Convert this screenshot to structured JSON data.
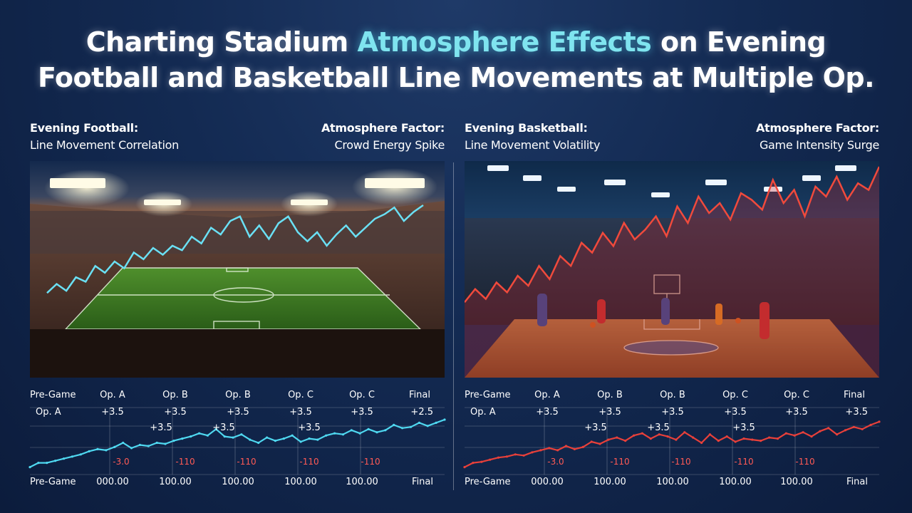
{
  "title": {
    "line1_pre": "Charting Stadium ",
    "line1_highlight": "Atmosphere Effects",
    "line1_post": " on Evening",
    "line2": "Football and Basketball Line Movements at Multiple Op."
  },
  "panels": [
    {
      "id": "football",
      "header_left_title": "Evening Football:",
      "header_left_sub": "Line Movement Correlation",
      "header_right_title": "Atmosphere Factor:",
      "header_right_sub": "Crowd Energy Spike"
    },
    {
      "id": "basketball",
      "header_left_title": "Evening Basketball:",
      "header_left_sub": "Line Movement Volatility",
      "header_right_title": "Atmosphere Factor:",
      "header_right_sub": "Game Intensity Surge"
    }
  ],
  "colors": {
    "football_line": "#4fd8f0",
    "basketball_line": "#e8403a",
    "title_highlight": "#7fe4ef",
    "negative_label": "#ff5a55",
    "grid": "#ffffff"
  },
  "icons": [
    "stadium-lights-icon",
    "soccer-field-icon",
    "basketball-court-icon"
  ],
  "chart_data": [
    {
      "type": "line",
      "name": "football",
      "top_labels": [
        "Pre-Game",
        "Op. A",
        "Op. B",
        "Op. B",
        "Op. C",
        "Op. C",
        "Final"
      ],
      "row_label": "Op. A",
      "row_values": [
        "+3.5",
        "+3.5",
        "+3.5",
        "+3.5",
        "+3.5",
        "+2.5"
      ],
      "annotations": [
        "+3.5",
        "+3.5",
        "+3.5"
      ],
      "red_labels": [
        "-3.0",
        "-110",
        "-110",
        "-110",
        "-110"
      ],
      "bottom_labels": [
        "Pre-Game",
        "000.00",
        "100.00",
        "100.00",
        "100.00",
        "100.00",
        "Final"
      ],
      "ylim": [
        0,
        100
      ],
      "values": [
        6,
        14,
        14,
        18,
        22,
        26,
        30,
        36,
        40,
        38,
        44,
        52,
        42,
        48,
        46,
        52,
        50,
        56,
        60,
        64,
        70,
        66,
        78,
        64,
        62,
        68,
        58,
        52,
        62,
        56,
        60,
        66,
        54,
        60,
        58,
        66,
        70,
        68,
        76,
        70,
        78,
        72,
        76,
        86,
        80,
        82,
        90,
        84,
        90,
        96
      ]
    },
    {
      "type": "line",
      "name": "basketball",
      "top_labels": [
        "Pre-Game",
        "Op. A",
        "Op. B",
        "Op. B",
        "Op. C",
        "Op. C",
        "Final"
      ],
      "row_label": "Op. A",
      "row_values": [
        "+3.5",
        "+3.5",
        "+3.5",
        "+3.5",
        "+3.5",
        "+3.5"
      ],
      "annotations": [
        "+3.5",
        "+3.5",
        "+3.5"
      ],
      "red_labels": [
        "-3.0",
        "-110",
        "-110",
        "-110",
        "-110"
      ],
      "bottom_labels": [
        "Pre-Game",
        "000.00",
        "100.00",
        "100.00",
        "100.00",
        "100.00",
        "Final"
      ],
      "ylim": [
        0,
        100
      ],
      "values": [
        6,
        14,
        16,
        20,
        24,
        26,
        30,
        28,
        34,
        38,
        42,
        38,
        46,
        40,
        44,
        54,
        50,
        58,
        62,
        56,
        66,
        70,
        60,
        68,
        64,
        58,
        72,
        62,
        52,
        68,
        56,
        64,
        54,
        60,
        58,
        56,
        62,
        60,
        70,
        66,
        72,
        64,
        74,
        80,
        68,
        76,
        82,
        78,
        86,
        92
      ]
    }
  ],
  "photo_trends": [
    {
      "name": "football",
      "values": [
        22,
        30,
        24,
        36,
        32,
        46,
        40,
        50,
        44,
        58,
        52,
        62,
        56,
        64,
        60,
        72,
        66,
        80,
        74,
        86,
        90,
        72,
        82,
        70,
        84,
        90,
        76,
        68,
        76,
        64,
        74,
        82,
        72,
        80,
        88,
        92,
        98,
        86,
        94,
        100
      ]
    },
    {
      "name": "basketball",
      "values": [
        18,
        26,
        20,
        30,
        24,
        34,
        28,
        40,
        32,
        46,
        40,
        54,
        48,
        60,
        52,
        66,
        56,
        62,
        70,
        58,
        76,
        66,
        82,
        72,
        78,
        68,
        84,
        80,
        74,
        92,
        78,
        86,
        70,
        88,
        82,
        94,
        80,
        90,
        86,
        100
      ]
    }
  ]
}
